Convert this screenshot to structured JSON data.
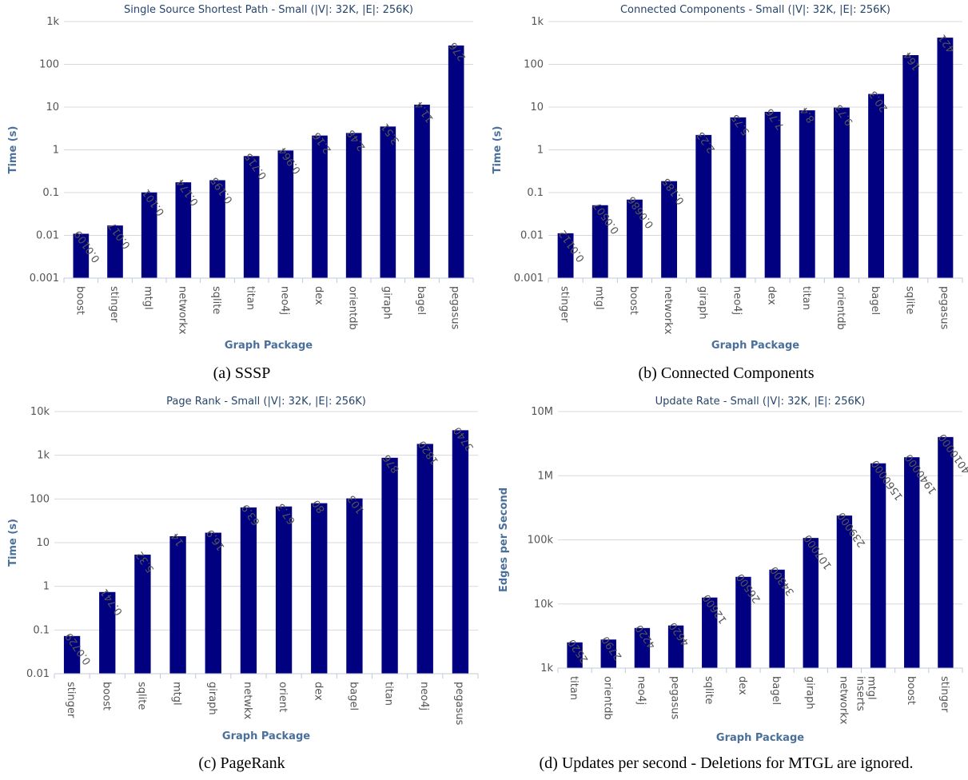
{
  "captions": {
    "a": "(a) SSSP",
    "b": "(b) Connected Components",
    "c": "(c) PageRank",
    "d": "(d) Updates per second - Deletions for MTGL are ignored."
  },
  "colors": {
    "bar": "#000080",
    "title": "#27456b",
    "axis_title": "#4a6f9a"
  },
  "chart_data": [
    {
      "type": "bar",
      "title": "Single Source Shortest Path - Small (|V|: 32K, |E|: 256K)",
      "xlabel": "Graph Package",
      "ylabel": "Time (s)",
      "yscale": "log",
      "ylim": [
        0.001,
        1000
      ],
      "ytick_labels": [
        "0.001",
        "0.01",
        "0.1",
        "1",
        "10",
        "100",
        "1k"
      ],
      "grid": true,
      "categories": [
        "boost",
        "stinger",
        "mtgl",
        "networkx",
        "sqlite",
        "titan",
        "neo4j",
        "dex",
        "orientdb",
        "giraph",
        "bagel",
        "pegasus"
      ],
      "values": [
        0.0109,
        0.017,
        0.101,
        0.174,
        0.195,
        0.715,
        0.964,
        2.16,
        2.48,
        3.51,
        11.4,
        276
      ],
      "value_labels": [
        "0.0109",
        "0.017",
        "0.101",
        "0.174",
        "0.195",
        "0.715",
        "0.964",
        "2.16",
        "2.48",
        "3.51",
        "11.4",
        "276"
      ]
    },
    {
      "type": "bar",
      "title": "Connected Components - Small (|V|: 32K, |E|: 256K)",
      "xlabel": "Graph Package",
      "ylabel": "Time (s)",
      "yscale": "log",
      "ylim": [
        0.001,
        1000
      ],
      "ytick_labels": [
        "0.001",
        "0.01",
        "0.1",
        "1",
        "10",
        "100",
        "1k"
      ],
      "grid": true,
      "categories": [
        "stinger",
        "mtgl",
        "boost",
        "networkx",
        "giraph",
        "neo4j",
        "dex",
        "titan",
        "orientdb",
        "bagel",
        "sqlite",
        "pegasus"
      ],
      "values": [
        0.0112,
        0.0507,
        0.0686,
        0.185,
        2.23,
        5.75,
        7.76,
        8.4,
        9.73,
        20.3,
        164,
        421
      ],
      "value_labels": [
        "0.0112",
        "0.0507",
        "0.0686",
        "0.185",
        "2.23",
        "5.75",
        "7.76",
        "8.4",
        "9.73",
        "20.3",
        "164",
        "421"
      ]
    },
    {
      "type": "bar",
      "title": "Page Rank - Small (|V|: 32K, |E|: 256K)",
      "xlabel": "Graph Package",
      "ylabel": "Time (s)",
      "yscale": "log",
      "ylim": [
        0.01,
        10000
      ],
      "ytick_labels": [
        "0.01",
        "0.1",
        "1",
        "10",
        "100",
        "1k",
        "10k"
      ],
      "grid": true,
      "categories": [
        "stinger",
        "boost",
        "sqlite",
        "mtgl",
        "giraph",
        "netwkx",
        "orient",
        "dex",
        "bagel",
        "titan",
        "neo4j",
        "pegasus"
      ],
      "values": [
        0.0729,
        0.741,
        5.32,
        14,
        16.9,
        63.9,
        67.3,
        80,
        103,
        876,
        1820,
        3740
      ],
      "value_labels": [
        "0.0729",
        "0.741",
        "5.32",
        "14",
        "16.9",
        "63.9",
        "67.3",
        "80",
        "103",
        "876",
        "1820",
        "3740"
      ]
    },
    {
      "type": "bar",
      "title": "Update Rate - Small (|V|: 32K, |E|: 256K)",
      "xlabel": "Graph Package",
      "ylabel": "Edges per Second",
      "yscale": "log",
      "ylim": [
        1000,
        10000000
      ],
      "ytick_labels": [
        "1k",
        "10k",
        "100k",
        "1M",
        "10M"
      ],
      "grid": true,
      "categories": [
        "titan",
        "orientdb",
        "neo4j",
        "pegasus",
        "sqlite",
        "dex",
        "bagel",
        "giraph",
        "networkx",
        "mtgl inserts",
        "boost",
        "stinger"
      ],
      "values": [
        2520,
        2790,
        4220,
        4620,
        12600,
        26500,
        34300,
        107000,
        239000,
        1560000,
        1940000,
        4010000
      ],
      "value_labels": [
        "2520",
        "2790",
        "4220",
        "4620",
        "12600",
        "26500",
        "34300",
        "107000",
        "239000",
        "1560000",
        "1940000",
        "4010000"
      ]
    }
  ]
}
